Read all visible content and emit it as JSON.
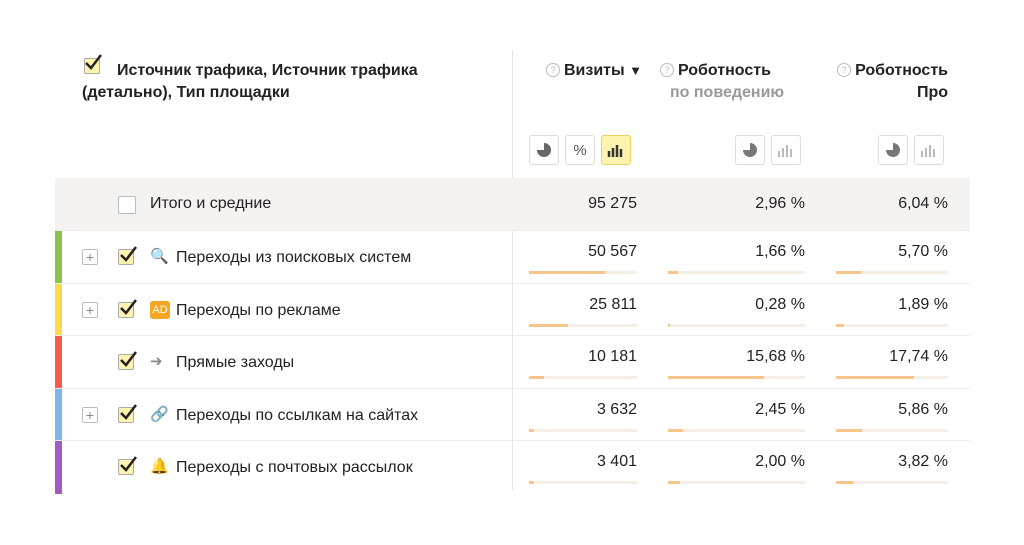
{
  "header": {
    "dimension_title": "Источник трафика, Источник трафика (детально), Тип площадки",
    "columns": [
      {
        "title": "Визиты",
        "sort": "▼"
      },
      {
        "title": "Роботность",
        "subtitle": "по поведению"
      },
      {
        "title": "Роботность Про"
      }
    ],
    "view_buttons": [
      "%"
    ]
  },
  "totals": {
    "label": "Итого и средние",
    "values": [
      "95 275",
      "2,96 %",
      "6,04 %"
    ]
  },
  "rows": [
    {
      "label": "Переходы из поисковых систем",
      "values": [
        "50 567",
        "1,66 %",
        "5,70 %"
      ]
    },
    {
      "label": "Переходы по рекламе",
      "badge": "AD",
      "values": [
        "25 811",
        "0,28 %",
        "1,89 %"
      ]
    },
    {
      "label": "Прямые заходы",
      "values": [
        "10 181",
        "15,68 %",
        "17,74 %"
      ]
    },
    {
      "label": "Переходы по ссылкам на сайтах",
      "values": [
        "3 632",
        "2,45 %",
        "5,86 %"
      ]
    },
    {
      "label": "Переходы с почтовых рассылок",
      "values": [
        "3 401",
        "2,00 %",
        "3,82 %"
      ]
    }
  ]
}
